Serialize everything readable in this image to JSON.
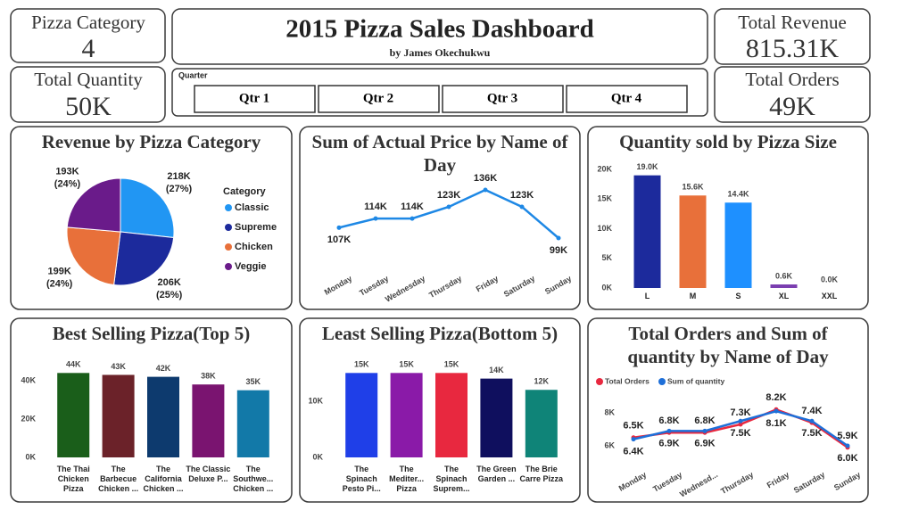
{
  "header": {
    "title": "2015 Pizza Sales Dashboard",
    "subtitle": "by James Okechukwu"
  },
  "kpis": [
    {
      "label": "Pizza Category",
      "value": "4"
    },
    {
      "label": "Total Quantity",
      "value": "50K"
    },
    {
      "label": "Total Revenue",
      "value": "815.31K"
    },
    {
      "label": "Total Orders",
      "value": "49K"
    }
  ],
  "slicer": {
    "title": "Quarter",
    "options": [
      "Qtr 1",
      "Qtr 2",
      "Qtr 3",
      "Qtr 4"
    ]
  },
  "chart_data": [
    {
      "type": "pie",
      "title": "Revenue by Pizza Category",
      "legend_title": "Category",
      "categories": [
        "Classic",
        "Supreme",
        "Chicken",
        "Veggie"
      ],
      "values": [
        218,
        206,
        199,
        193
      ],
      "value_labels": [
        "218K",
        "206K",
        "199K",
        "193K"
      ],
      "percentages": [
        27,
        25,
        24,
        24
      ],
      "percentage_labels": [
        "(27%)",
        "(25%)",
        "(24%)",
        "(24%)"
      ],
      "colors": [
        "#2196f3",
        "#1c2a9c",
        "#e8703a",
        "#6a1b8a"
      ]
    },
    {
      "type": "line",
      "title": "Sum of Actual Price by Name of Day",
      "categories": [
        "Monday",
        "Tuesday",
        "Wednesday",
        "Thursday",
        "Friday",
        "Saturday",
        "Sunday"
      ],
      "values": [
        107,
        114,
        114,
        123,
        136,
        123,
        99
      ],
      "value_labels": [
        "107K",
        "114K",
        "114K",
        "123K",
        "136K",
        "123K",
        "99K"
      ],
      "color": "#1e88e5"
    },
    {
      "type": "bar",
      "title": "Quantity sold by Pizza Size",
      "categories": [
        "L",
        "M",
        "S",
        "XL",
        "XXL"
      ],
      "values": [
        19.0,
        15.6,
        14.4,
        0.6,
        0.0
      ],
      "value_labels": [
        "19.0K",
        "15.6K",
        "14.4K",
        "0.6K",
        "0.0K"
      ],
      "colors": [
        "#1c2a9c",
        "#e8703a",
        "#1e90ff",
        "#7b3fb0",
        "#222222"
      ],
      "ylim": [
        0,
        20
      ],
      "yticks": [
        {
          "value": 0,
          "label": "0K"
        },
        {
          "value": 5,
          "label": "5K"
        },
        {
          "value": 10,
          "label": "10K"
        },
        {
          "value": 15,
          "label": "15K"
        },
        {
          "value": 20,
          "label": "20K"
        }
      ]
    },
    {
      "type": "bar",
      "title": "Best Selling Pizza(Top 5)",
      "categories": [
        "The Thai Chicken Pizza",
        "The Barbecue Chicken ...",
        "The California Chicken ...",
        "The Classic Deluxe P...",
        "The Southwe... Chicken ..."
      ],
      "values": [
        44,
        43,
        42,
        38,
        35
      ],
      "value_labels": [
        "44K",
        "43K",
        "42K",
        "38K",
        "35K"
      ],
      "colors": [
        "#1a5e1a",
        "#6b2229",
        "#0d3a6e",
        "#7a1470",
        "#1279a8"
      ],
      "ylim": [
        0,
        46
      ],
      "yticks": [
        {
          "value": 0,
          "label": "0K"
        },
        {
          "value": 20,
          "label": "20K"
        },
        {
          "value": 40,
          "label": "40K"
        }
      ]
    },
    {
      "type": "bar",
      "title": "Least Selling Pizza(Bottom 5)",
      "categories": [
        "The Spinach Pesto Pi...",
        "The Mediter... Pizza",
        "The Spinach Suprem...",
        "The Green Garden ...",
        "The Brie Carre Pizza"
      ],
      "values": [
        15,
        15,
        15,
        14,
        12
      ],
      "value_labels": [
        "15K",
        "15K",
        "15K",
        "14K",
        "12K"
      ],
      "colors": [
        "#1f3fe8",
        "#8a1aa8",
        "#e8283f",
        "#0f0f5e",
        "#0f8478"
      ],
      "ylim": [
        0,
        16
      ],
      "yticks": [
        {
          "value": 0,
          "label": "0K"
        },
        {
          "value": 10,
          "label": "10K"
        }
      ]
    },
    {
      "type": "line",
      "title": "Total Orders and Sum of quantity by Name of Day",
      "categories": [
        "Monday",
        "Tuesday",
        "Wednesd...",
        "Thursday",
        "Friday",
        "Saturday",
        "Sunday"
      ],
      "series": [
        {
          "name": "Total Orders",
          "color": "#e8283f",
          "values": [
            6.5,
            6.8,
            6.8,
            7.3,
            8.2,
            7.4,
            5.9
          ],
          "value_labels": [
            "6.5K",
            "6.8K",
            "6.8K",
            "7.3K",
            "8.2K",
            "7.4K",
            "5.9K"
          ]
        },
        {
          "name": "Sum of quantity",
          "color": "#1e6fd8",
          "values": [
            6.4,
            6.9,
            6.9,
            7.5,
            8.1,
            7.5,
            6.0
          ],
          "value_labels": [
            "6.4K",
            "6.9K",
            "6.9K",
            "7.5K",
            "8.1K",
            "7.5K",
            "6.0K"
          ]
        }
      ],
      "ylim": [
        5.5,
        8.6
      ],
      "yticks": [
        {
          "value": 6,
          "label": "6K"
        },
        {
          "value": 8,
          "label": "8K"
        }
      ]
    }
  ]
}
